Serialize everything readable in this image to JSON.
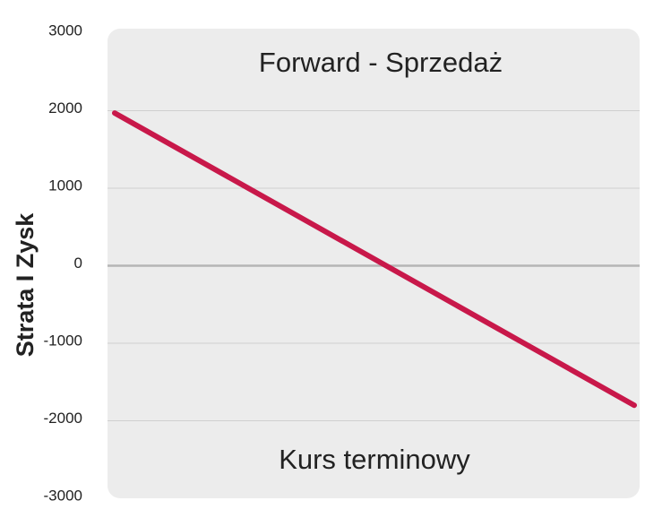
{
  "chart_data": {
    "type": "line",
    "title": "Forward - Sprzedaż",
    "x_label": "Kurs terminowy",
    "y_label": "Strata I Zysk",
    "categories": [
      null,
      null
    ],
    "series": [
      {
        "name": null,
        "color": "#c8184a",
        "values": [
          1970,
          -1800
        ]
      }
    ],
    "ylim": [
      -3000,
      3000
    ],
    "yticks": [
      -3000,
      -2000,
      -1000,
      0,
      1000,
      2000,
      3000
    ],
    "grid": true
  }
}
